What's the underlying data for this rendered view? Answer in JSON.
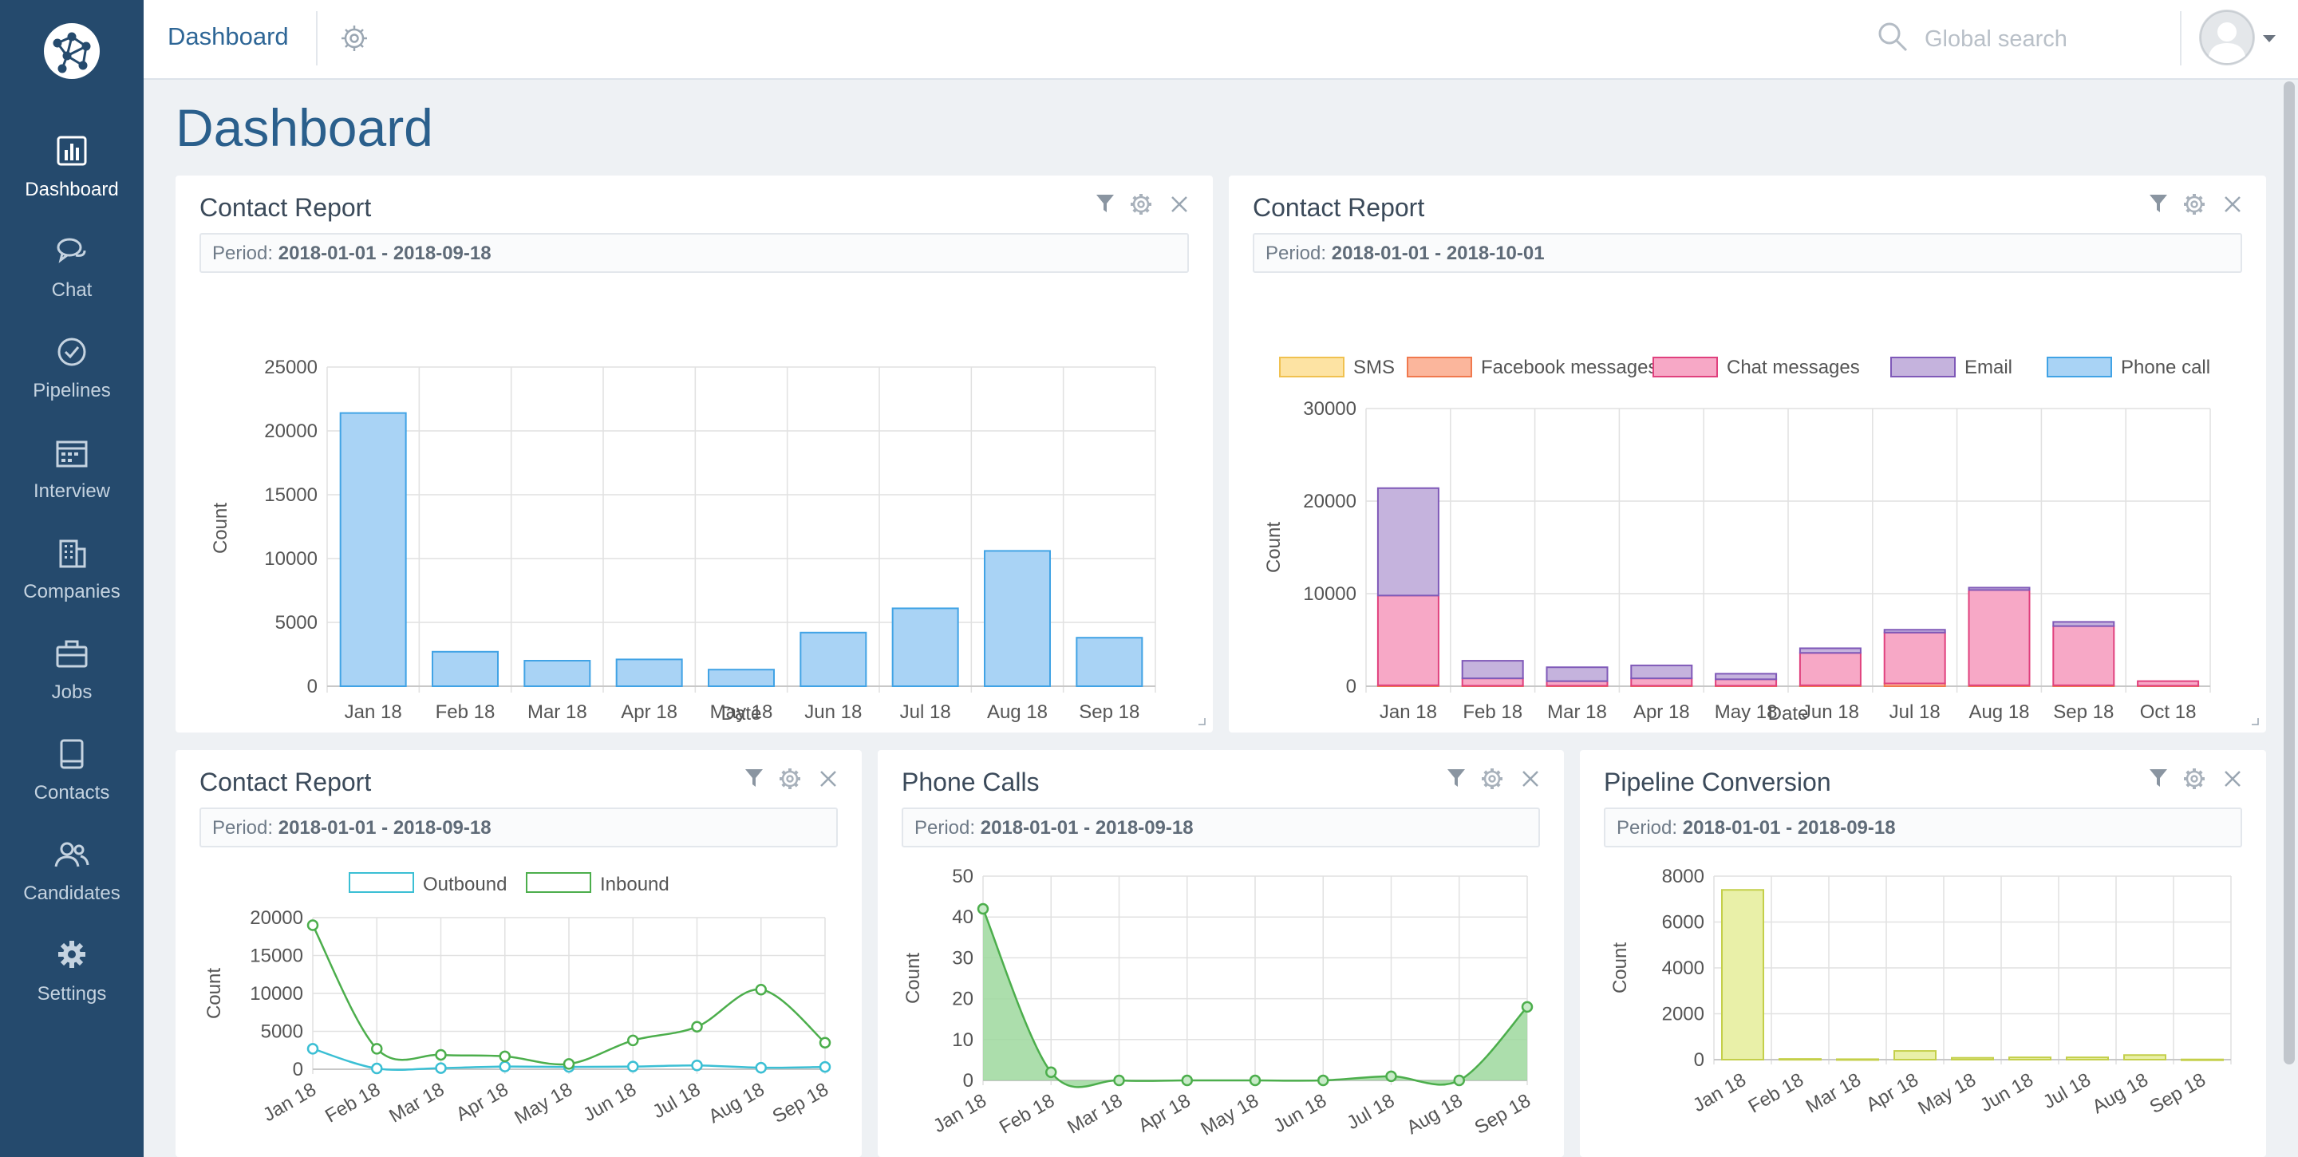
{
  "sidebar": {
    "items": [
      {
        "label": "Dashboard",
        "icon": "bar-chart-icon",
        "active": true
      },
      {
        "label": "Chat",
        "icon": "chat-icon"
      },
      {
        "label": "Pipelines",
        "icon": "check-circle-icon"
      },
      {
        "label": "Interview",
        "icon": "calendar-icon"
      },
      {
        "label": "Companies",
        "icon": "building-icon"
      },
      {
        "label": "Jobs",
        "icon": "briefcase-icon"
      },
      {
        "label": "Contacts",
        "icon": "phonebook-icon"
      },
      {
        "label": "Candidates",
        "icon": "users-icon"
      },
      {
        "label": "Settings",
        "icon": "gear-icon"
      }
    ]
  },
  "topbar": {
    "title": "Dashboard",
    "search_placeholder": "Global search"
  },
  "page_title": "Dashboard",
  "colors": {
    "sidebar": "#254a6d",
    "accent": "#2e6696",
    "blue_bar": "#a9d3f5",
    "blue_stroke": "#41a3e5",
    "green": "#4cae4c",
    "cyan": "#3bbfd4",
    "pink": "#f7a8c6",
    "purple": "#c5b3dd",
    "orange": "#fbb69c",
    "yellow": "#fde3a3",
    "olive": "#e9f0a8"
  },
  "panels": [
    {
      "title": "Contact Report",
      "period_label": "Period:",
      "period": "2018-01-01 - 2018-09-18"
    },
    {
      "title": "Contact Report",
      "period_label": "Period:",
      "period": "2018-01-01 - 2018-10-01"
    },
    {
      "title": "Contact Report",
      "period_label": "Period:",
      "period": "2018-01-01 - 2018-09-18"
    },
    {
      "title": "Phone Calls",
      "period_label": "Period:",
      "period": "2018-01-01 - 2018-09-18"
    },
    {
      "title": "Pipeline Conversion",
      "period_label": "Period:",
      "period": "2018-01-01 - 2018-09-18"
    }
  ],
  "chart_data": [
    {
      "type": "bar",
      "categories": [
        "Jan 18",
        "Feb 18",
        "Mar 18",
        "Apr 18",
        "May 18",
        "Jun 18",
        "Jul 18",
        "Aug 18",
        "Sep 18"
      ],
      "values": [
        21400,
        2700,
        2000,
        2100,
        1300,
        4200,
        6100,
        10600,
        3800
      ],
      "xlabel": "Date",
      "ylabel": "Count",
      "ylim": [
        0,
        25000
      ],
      "yticks": [
        0,
        5000,
        10000,
        15000,
        20000,
        25000
      ],
      "grid": true
    },
    {
      "type": "bar",
      "stacked": true,
      "categories": [
        "Jan 18",
        "Feb 18",
        "Mar 18",
        "Apr 18",
        "May 18",
        "Jun 18",
        "Jul 18",
        "Aug 18",
        "Sep 18",
        "Oct 18"
      ],
      "series": [
        {
          "name": "SMS",
          "values": [
            0,
            0,
            0,
            0,
            0,
            0,
            0,
            0,
            0,
            0
          ]
        },
        {
          "name": "Facebook messages",
          "values": [
            100,
            50,
            50,
            50,
            50,
            100,
            300,
            100,
            100,
            50
          ]
        },
        {
          "name": "Chat messages",
          "values": [
            9700,
            800,
            500,
            800,
            700,
            3500,
            5500,
            10300,
            6400,
            500
          ]
        },
        {
          "name": "Email",
          "values": [
            11600,
            1900,
            1500,
            1400,
            600,
            500,
            300,
            250,
            450,
            0
          ]
        },
        {
          "name": "Phone call",
          "values": [
            0,
            0,
            0,
            0,
            0,
            0,
            0,
            0,
            0,
            0
          ]
        }
      ],
      "xlabel": "Date",
      "ylabel": "Count",
      "ylim": [
        0,
        30000
      ],
      "yticks": [
        0,
        10000,
        20000,
        30000
      ],
      "legend": "top",
      "grid": true
    },
    {
      "type": "line",
      "categories": [
        "Jan 18",
        "Feb 18",
        "Mar 18",
        "Apr 18",
        "May 18",
        "Jun 18",
        "Jul 18",
        "Aug 18",
        "Sep 18"
      ],
      "series": [
        {
          "name": "Outbound",
          "values": [
            2700,
            100,
            150,
            350,
            300,
            350,
            500,
            200,
            300
          ]
        },
        {
          "name": "Inbound",
          "values": [
            19000,
            2700,
            1900,
            1700,
            700,
            3800,
            5600,
            10500,
            3500
          ]
        }
      ],
      "ylabel": "Count",
      "ylim": [
        0,
        20000
      ],
      "yticks": [
        0,
        5000,
        10000,
        15000,
        20000
      ],
      "legend": "top",
      "grid": true
    },
    {
      "type": "area",
      "categories": [
        "Jan 18",
        "Feb 18",
        "Mar 18",
        "Apr 18",
        "May 18",
        "Jun 18",
        "Jul 18",
        "Aug 18",
        "Sep 18"
      ],
      "values": [
        42,
        2,
        0,
        0,
        0,
        0,
        1,
        0,
        18
      ],
      "ylabel": "Count",
      "ylim": [
        0,
        50
      ],
      "yticks": [
        0,
        10,
        20,
        30,
        40,
        50
      ],
      "grid": true
    },
    {
      "type": "bar",
      "categories": [
        "Jan 18",
        "Feb 18",
        "Mar 18",
        "Apr 18",
        "May 18",
        "Jun 18",
        "Jul 18",
        "Aug 18",
        "Sep 18"
      ],
      "values": [
        7400,
        30,
        20,
        380,
        80,
        100,
        100,
        200,
        10
      ],
      "ylabel": "Count",
      "ylim": [
        0,
        8000
      ],
      "yticks": [
        0,
        2000,
        4000,
        6000,
        8000
      ],
      "grid": true
    }
  ]
}
